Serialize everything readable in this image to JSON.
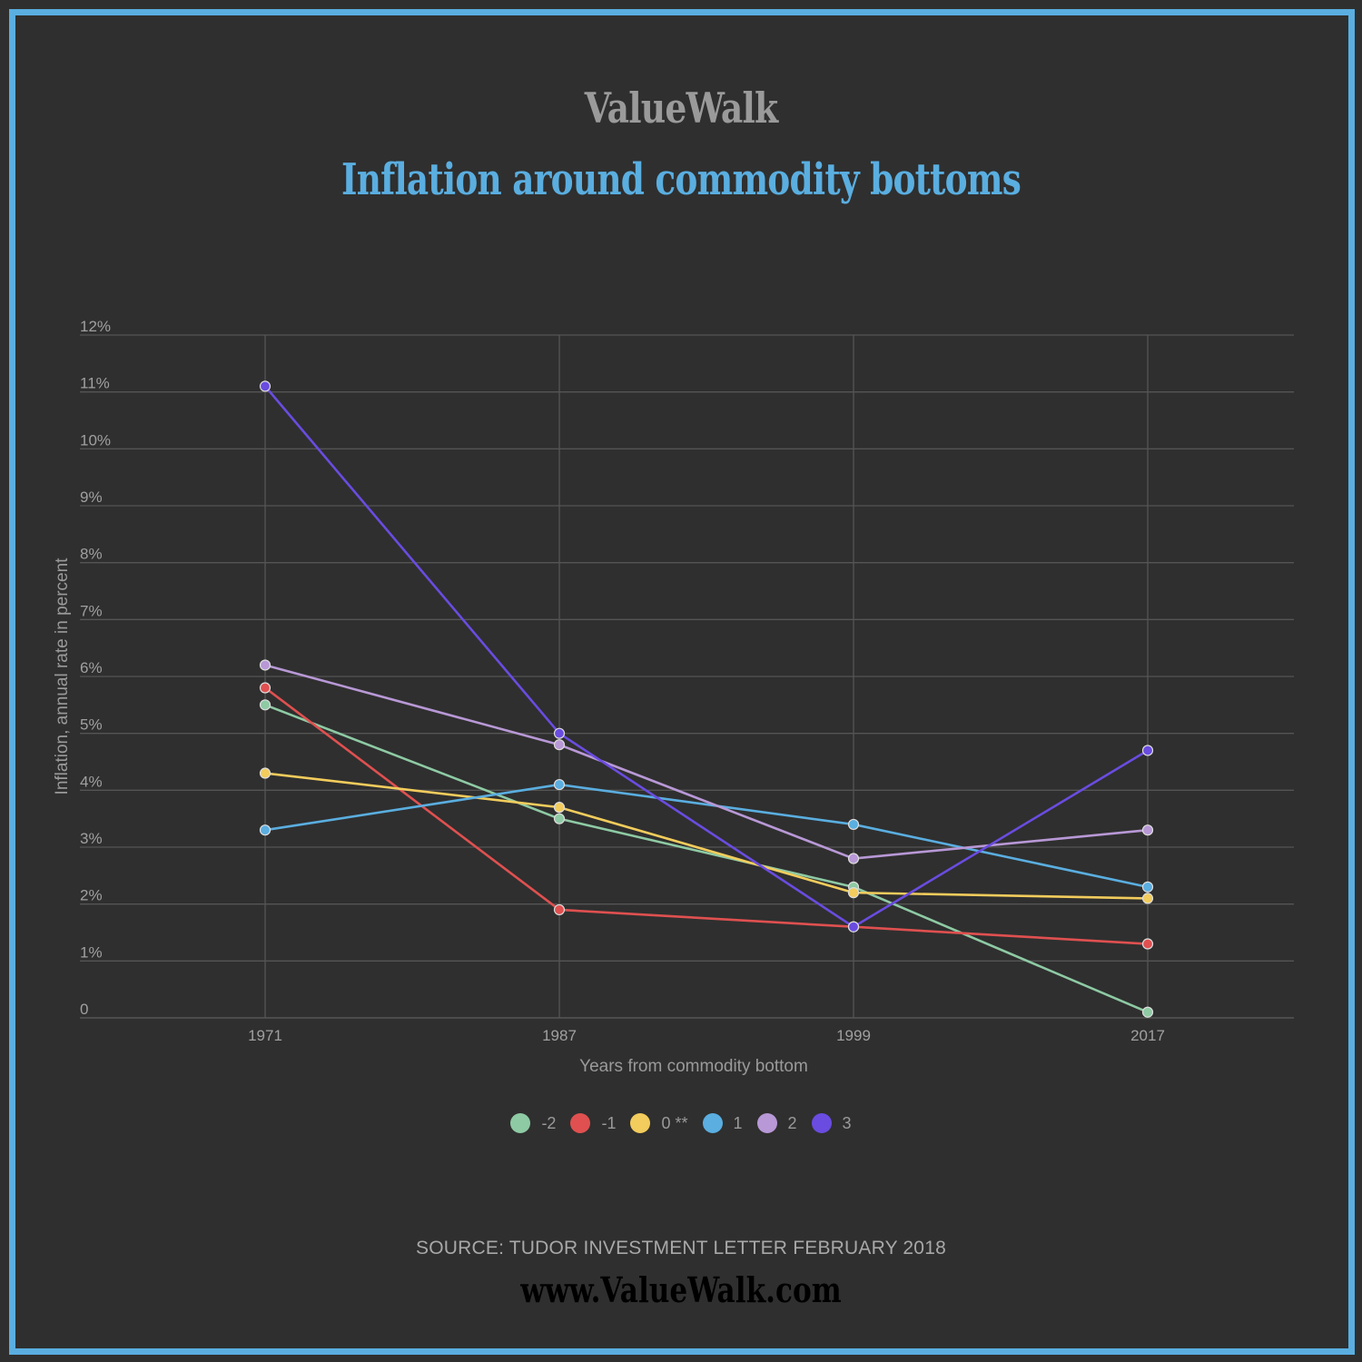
{
  "brand": "ValueWalk",
  "title": "Inflation around commodity bottoms",
  "source": "SOURCE: TUDOR INVESTMENT LETTER FEBRUARY 2018",
  "url": "www.ValueWalk.com",
  "chart_data": {
    "type": "line",
    "title": "Inflation around commodity bottoms",
    "xlabel": "Years from commodity bottom",
    "ylabel": "Inflation, annual rate in percent",
    "x": [
      "1971",
      "1987",
      "1999",
      "2017"
    ],
    "ylim": [
      0,
      12
    ],
    "yticks": [
      "0",
      "1%",
      "2%",
      "3%",
      "4%",
      "5%",
      "6%",
      "7%",
      "8%",
      "9%",
      "10%",
      "11%",
      "12%"
    ],
    "grid": true,
    "legend_position": "bottom",
    "series": [
      {
        "name": "-2",
        "color": "#8ecaa4",
        "values": [
          5.5,
          3.5,
          2.3,
          0.1
        ]
      },
      {
        "name": "-1",
        "color": "#e05050",
        "values": [
          5.8,
          1.9,
          1.6,
          1.3
        ]
      },
      {
        "name": "0 **",
        "color": "#f2cc5c",
        "values": [
          4.3,
          3.7,
          2.2,
          2.1
        ]
      },
      {
        "name": "1",
        "color": "#5aaee0",
        "values": [
          3.3,
          4.1,
          3.4,
          2.3
        ]
      },
      {
        "name": "2",
        "color": "#b898d6",
        "values": [
          6.2,
          4.8,
          2.8,
          3.3
        ]
      },
      {
        "name": "3",
        "color": "#6a4ce0",
        "values": [
          11.1,
          5.0,
          1.6,
          4.7
        ]
      }
    ]
  }
}
